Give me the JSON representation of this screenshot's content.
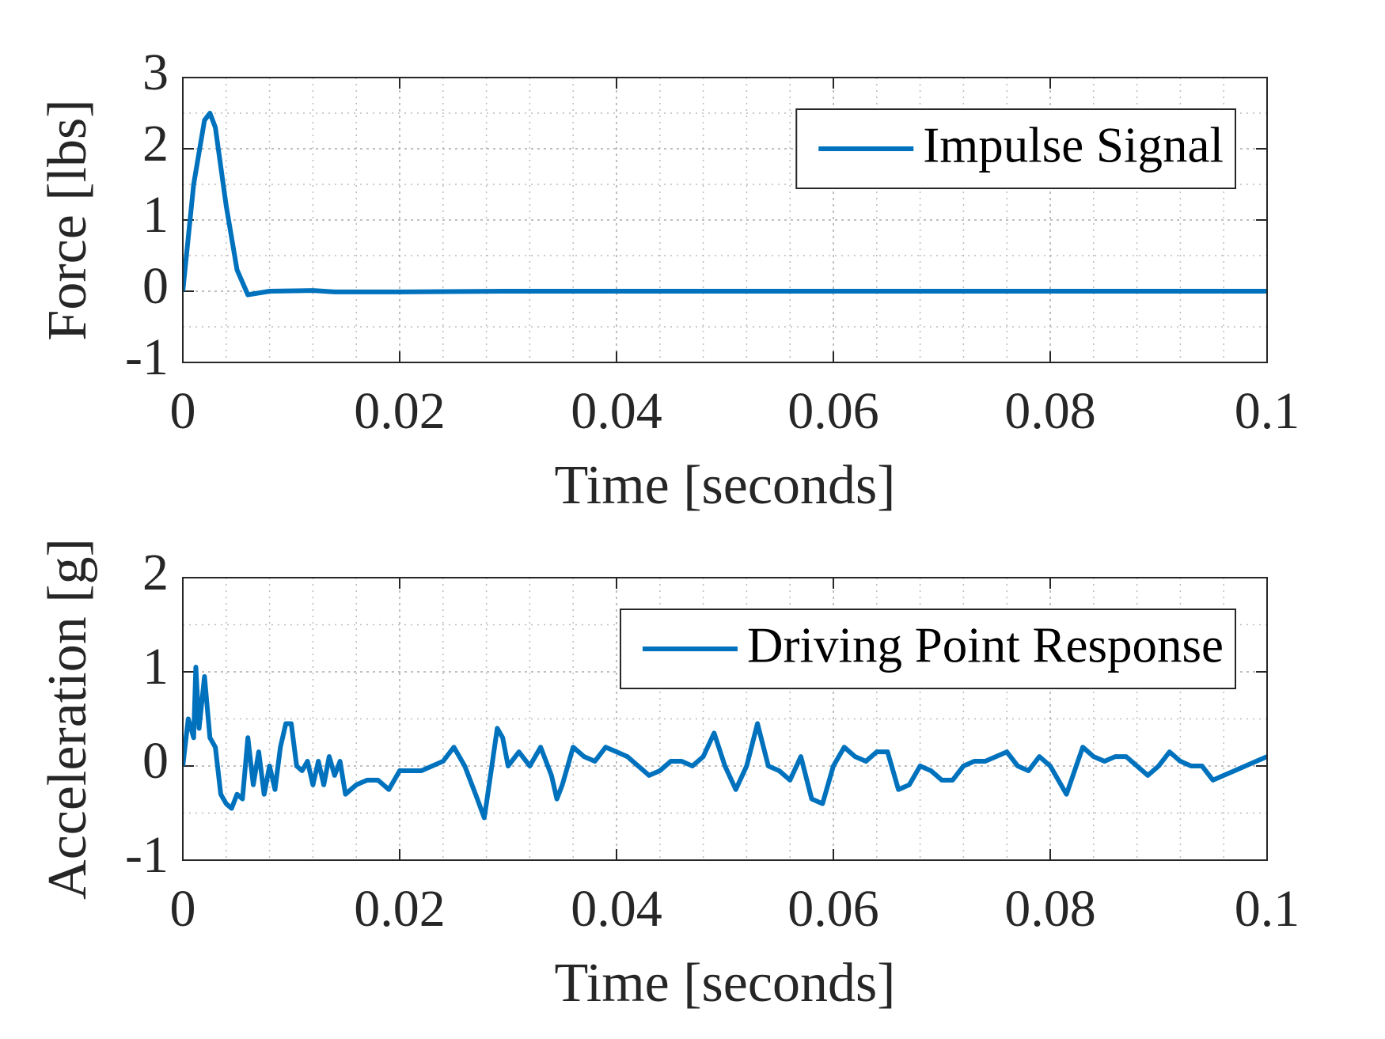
{
  "chart_data": [
    {
      "type": "line",
      "xlabel": "Time [seconds]",
      "ylabel": "Force [lbs]",
      "x": [
        0,
        0.001,
        0.002,
        0.0025,
        0.003,
        0.004,
        0.005,
        0.006,
        0.008,
        0.012,
        0.014,
        0.02,
        0.03,
        0.04,
        0.06,
        0.08,
        0.1
      ],
      "series": [
        {
          "name": "Impulse Signal",
          "color": "#0072bd",
          "values": [
            0,
            1.5,
            2.4,
            2.5,
            2.3,
            1.2,
            0.3,
            -0.05,
            0,
            0.01,
            -0.01,
            -0.01,
            0,
            0,
            0,
            0,
            0
          ]
        }
      ],
      "xlim": [
        0,
        0.1
      ],
      "ylim": [
        -1,
        3
      ],
      "xticks": [
        0,
        0.02,
        0.04,
        0.06,
        0.08,
        0.1
      ],
      "yticks": [
        -1,
        0,
        1,
        2,
        3
      ],
      "grid": true,
      "minor_grid": true,
      "legend": "upper right"
    },
    {
      "type": "line",
      "xlabel": "Time [seconds]",
      "ylabel": "Acceleration [g]",
      "x": [
        0,
        0.0005,
        0.001,
        0.0012,
        0.0015,
        0.002,
        0.0025,
        0.003,
        0.0035,
        0.004,
        0.0045,
        0.005,
        0.0055,
        0.006,
        0.0065,
        0.007,
        0.0075,
        0.008,
        0.0085,
        0.009,
        0.0095,
        0.01,
        0.0105,
        0.011,
        0.0115,
        0.012,
        0.0125,
        0.013,
        0.0135,
        0.014,
        0.0145,
        0.015,
        0.016,
        0.017,
        0.018,
        0.019,
        0.02,
        0.021,
        0.022,
        0.023,
        0.024,
        0.025,
        0.026,
        0.027,
        0.0278,
        0.028,
        0.029,
        0.0295,
        0.03,
        0.031,
        0.032,
        0.033,
        0.034,
        0.0345,
        0.035,
        0.036,
        0.037,
        0.038,
        0.039,
        0.04,
        0.041,
        0.042,
        0.043,
        0.044,
        0.045,
        0.046,
        0.047,
        0.048,
        0.049,
        0.05,
        0.051,
        0.052,
        0.053,
        0.054,
        0.055,
        0.056,
        0.057,
        0.058,
        0.059,
        0.06,
        0.061,
        0.062,
        0.063,
        0.064,
        0.065,
        0.066,
        0.067,
        0.068,
        0.069,
        0.07,
        0.071,
        0.072,
        0.073,
        0.074,
        0.075,
        0.076,
        0.077,
        0.078,
        0.079,
        0.08,
        0.0815,
        0.083,
        0.084,
        0.085,
        0.086,
        0.087,
        0.088,
        0.089,
        0.09,
        0.091,
        0.092,
        0.093,
        0.094,
        0.095,
        0.096,
        0.097,
        0.098,
        0.099,
        0.1
      ],
      "series": [
        {
          "name": "Driving Point Response",
          "color": "#0072bd",
          "values": [
            0,
            0.5,
            0.3,
            1.05,
            0.4,
            0.95,
            0.3,
            0.2,
            -0.3,
            -0.4,
            -0.45,
            -0.3,
            -0.35,
            0.3,
            -0.2,
            0.15,
            -0.3,
            0,
            -0.25,
            0.2,
            0.45,
            0.45,
            0,
            -0.05,
            0.05,
            -0.2,
            0.05,
            -0.2,
            0.1,
            -0.1,
            0.05,
            -0.3,
            -0.2,
            -0.15,
            -0.15,
            -0.25,
            -0.05,
            -0.05,
            -0.05,
            0,
            0.05,
            0.2,
            0,
            -0.3,
            -0.55,
            -0.4,
            0.4,
            0.3,
            0,
            0.15,
            0,
            0.2,
            -0.1,
            -0.35,
            -0.2,
            0.2,
            0.1,
            0.05,
            0.2,
            0.15,
            0.1,
            0,
            -0.1,
            -0.05,
            0.05,
            0.05,
            0,
            0.1,
            0.35,
            0,
            -0.25,
            0,
            0.45,
            0,
            -0.05,
            -0.15,
            0.1,
            -0.35,
            -0.4,
            0,
            0.2,
            0.1,
            0.05,
            0.15,
            0.15,
            -0.25,
            -0.2,
            0,
            -0.05,
            -0.15,
            -0.15,
            0,
            0.05,
            0.05,
            0.1,
            0.15,
            0,
            -0.05,
            0.1,
            0,
            -0.3,
            0.2,
            0.1,
            0.05,
            0.1,
            0.1,
            0,
            -0.1,
            0,
            0.15,
            0.05,
            0,
            0,
            -0.15,
            -0.1,
            -0.05,
            0,
            0.05,
            0.1
          ]
        }
      ],
      "xlim": [
        0,
        0.1
      ],
      "ylim": [
        -1,
        2
      ],
      "xticks": [
        0,
        0.02,
        0.04,
        0.06,
        0.08,
        0.1
      ],
      "yticks": [
        -1,
        0,
        1,
        2
      ],
      "grid": true,
      "minor_grid": true,
      "legend": "upper right"
    }
  ]
}
